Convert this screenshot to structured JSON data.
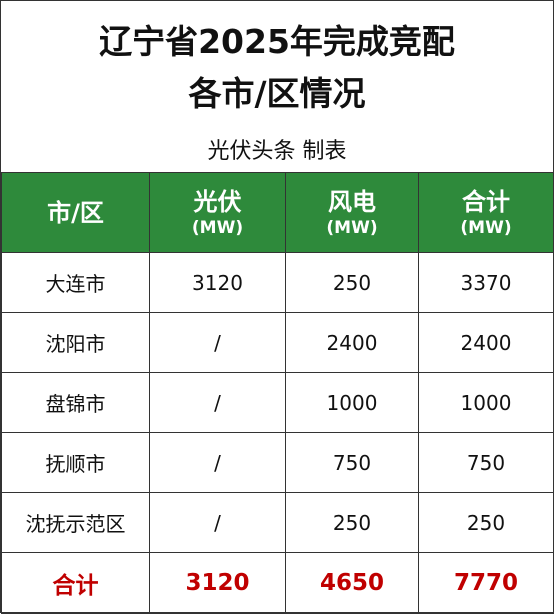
{
  "header": {
    "title_lines": [
      "辽宁省2025年完成竞配",
      "各市/区情况"
    ],
    "subtitle": "光伏头条 制表"
  },
  "table": {
    "columns": [
      {
        "name": "市/区"
      },
      {
        "name": "光伏",
        "unit": "(MW)"
      },
      {
        "name": "风电",
        "unit": "(MW)"
      },
      {
        "name": "合计",
        "unit": "(MW)"
      }
    ],
    "rows": [
      [
        "大连市",
        "3120",
        "250",
        "3370"
      ],
      [
        "沈阳市",
        "/",
        "2400",
        "2400"
      ],
      [
        "盘锦市",
        "/",
        "1000",
        "1000"
      ],
      [
        "抚顺市",
        "/",
        "750",
        "750"
      ],
      [
        "沈抚示范区",
        "/",
        "250",
        "250"
      ]
    ],
    "total": [
      "合计",
      "3120",
      "4650",
      "7770"
    ]
  }
}
